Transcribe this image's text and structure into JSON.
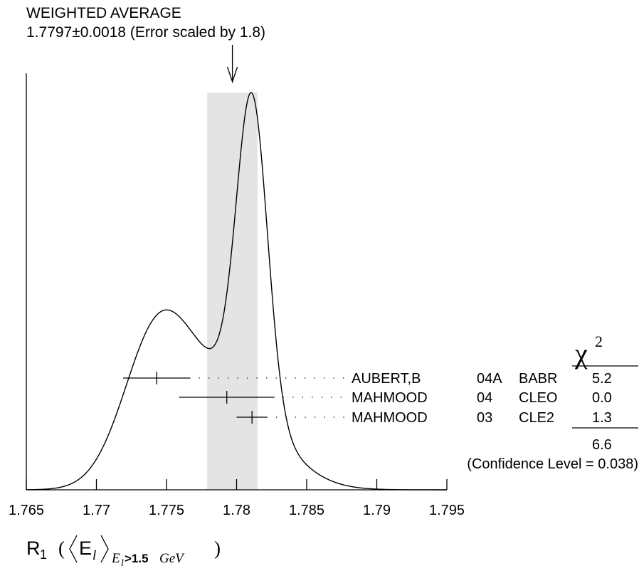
{
  "chart_data": {
    "type": "ideogram",
    "title": "WEIGHTED AVERAGE",
    "subtitle": "1.7797±0.0018 (Error scaled by 1.8)",
    "xlabel": "R",
    "xlabel_sub": "1",
    "xlabel_E": "E",
    "xlabel_l": "l",
    "xlabel_cond": "E",
    "xlabel_cond_l": "l",
    "xlabel_cond_rest": ">1.5",
    "xlabel_cond_unit": "GeV",
    "xlim": [
      1.765,
      1.795
    ],
    "x_ticks": [
      "1.765",
      "1.77",
      "1.775",
      "1.78",
      "1.785",
      "1.79",
      "1.795"
    ],
    "average": {
      "value": 1.7797,
      "error": 0.0018
    },
    "chi2_header": "χ",
    "chi2_power": "2",
    "measurements": [
      {
        "author": "AUBERT,B",
        "year": "04A",
        "experiment": "BABR",
        "value": 1.7743,
        "error": 0.0024,
        "chi2": "5.2"
      },
      {
        "author": "MAHMOOD",
        "year": "04",
        "experiment": "CLEO",
        "value": 1.7793,
        "error": 0.0034,
        "chi2": "0.0"
      },
      {
        "author": "MAHMOOD",
        "year": "03",
        "experiment": "CLE2",
        "value": 1.7811,
        "error": 0.0011,
        "chi2": "1.3"
      }
    ],
    "chi2_total": "6.6",
    "confidence_level": "(Confidence Level = 0.038)",
    "ideogram_peak_x": 1.7812,
    "grid": false
  }
}
